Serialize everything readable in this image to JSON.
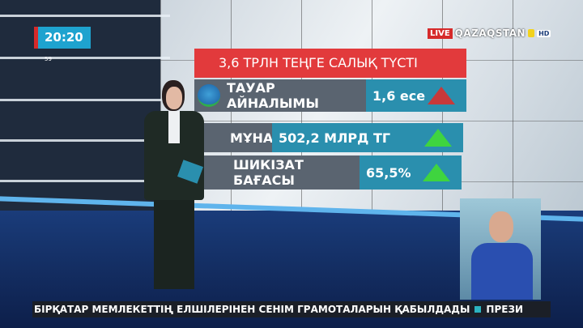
{
  "clock": {
    "time": "20:20",
    "seconds": "59"
  },
  "channel": {
    "live": "LIVE",
    "name": "QAZAQSTAN",
    "hd": "HD"
  },
  "graphic": {
    "title": "3,6 ТРЛН ТЕҢГЕ САЛЫҚ ТҮСТІ",
    "rows": [
      {
        "label": "ТАУАР АЙНАЛЫМЫ",
        "value": "1,6 есе",
        "trend": "up",
        "arrow_color": "#c8393a"
      },
      {
        "label": "МҰНАЙ",
        "value": "502,2 МЛРД ТГ",
        "trend": "up",
        "arrow_color": "#3fd43f"
      },
      {
        "label": "ШИКІЗАТ БАҒАСЫ",
        "value": "65,5%",
        "trend": "up",
        "arrow_color": "#3fd43f"
      }
    ]
  },
  "ticker": {
    "text": "БІРҚАТАР МЕМЛЕКЕТТІҢ ЕЛШІЛЕРІНЕН СЕНІМ ГРАМОТАЛАРЫН ҚАБЫЛДАДЫ",
    "next": "ПРЕЗИ"
  }
}
